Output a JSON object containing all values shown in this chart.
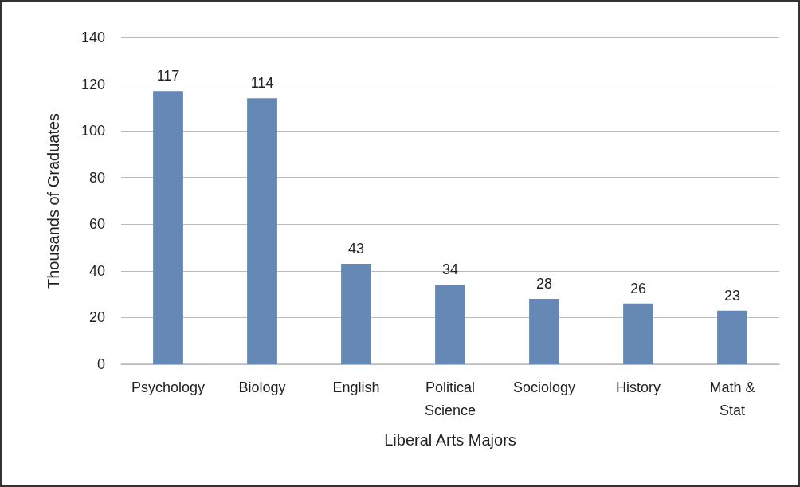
{
  "chart_data": {
    "type": "bar",
    "xlabel": "Liberal Arts Majors",
    "ylabel": "Thousands of Graduates",
    "categories": [
      "Psychology",
      "Biology",
      "English",
      "Political\nScience",
      "Sociology",
      "History",
      "Math &\nStat"
    ],
    "values": [
      117,
      114,
      43,
      34,
      28,
      26,
      23
    ],
    "color": "#6688b4",
    "data_labels": true,
    "ylim": [
      0,
      140
    ],
    "yticks": [
      0,
      20,
      40,
      60,
      80,
      100,
      120,
      140
    ],
    "grid": "y"
  }
}
